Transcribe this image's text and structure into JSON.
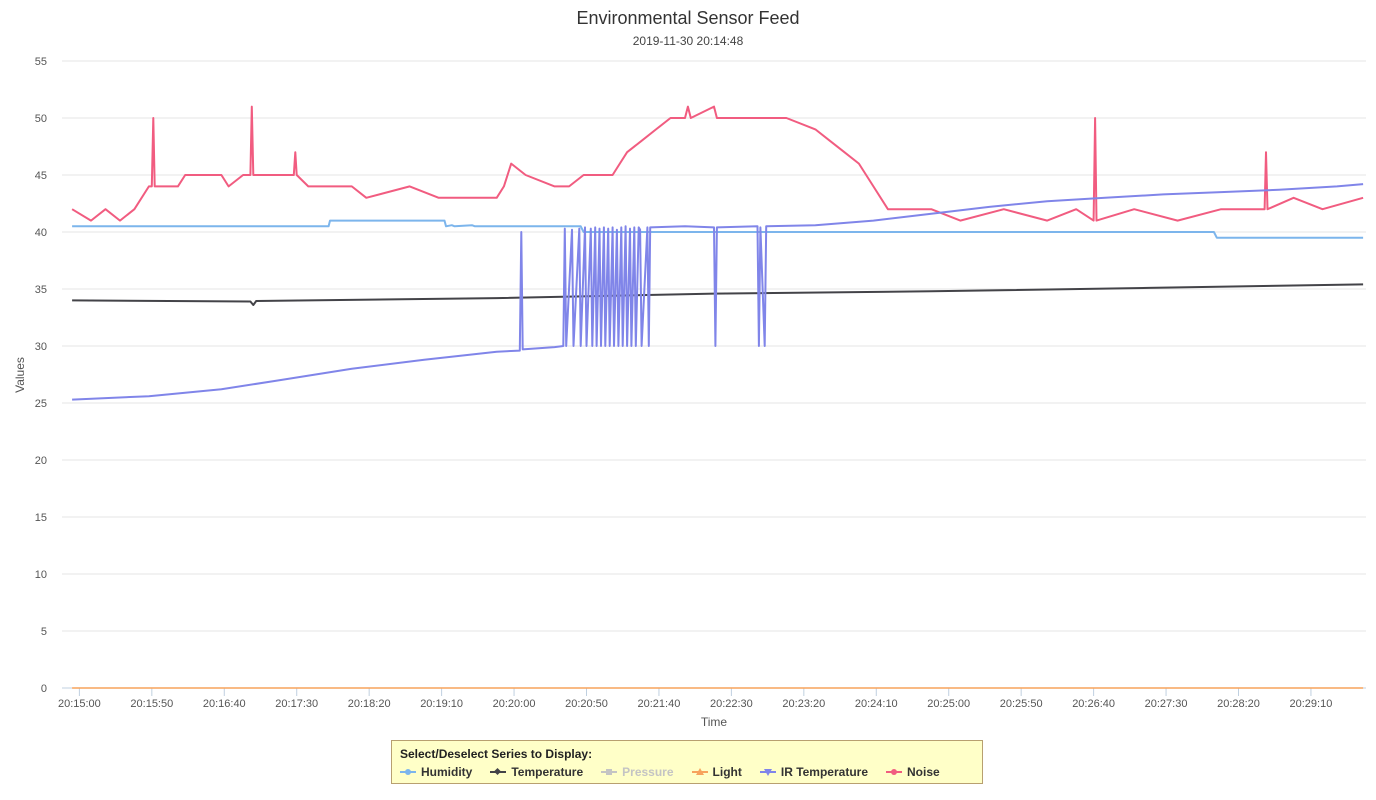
{
  "chart_data": {
    "type": "line",
    "title": "Environmental Sensor Feed",
    "subtitle": "2019-11-30 20:14:48",
    "xlabel": "Time",
    "ylabel": "Values",
    "ylim": [
      0,
      55
    ],
    "yticks": [
      0,
      5,
      10,
      15,
      20,
      25,
      30,
      35,
      40,
      45,
      50,
      55
    ],
    "xlim_seconds": [
      0,
      900
    ],
    "xticks": [
      {
        "label": "20:15:00",
        "t": 12
      },
      {
        "label": "20:15:50",
        "t": 62
      },
      {
        "label": "20:16:40",
        "t": 112
      },
      {
        "label": "20:17:30",
        "t": 162
      },
      {
        "label": "20:18:20",
        "t": 212
      },
      {
        "label": "20:19:10",
        "t": 262
      },
      {
        "label": "20:20:00",
        "t": 312
      },
      {
        "label": "20:20:50",
        "t": 362
      },
      {
        "label": "20:21:40",
        "t": 412
      },
      {
        "label": "20:22:30",
        "t": 462
      },
      {
        "label": "20:23:20",
        "t": 512
      },
      {
        "label": "20:24:10",
        "t": 562
      },
      {
        "label": "20:25:00",
        "t": 612
      },
      {
        "label": "20:25:50",
        "t": 662
      },
      {
        "label": "20:26:40",
        "t": 712
      },
      {
        "label": "20:27:30",
        "t": 762
      },
      {
        "label": "20:28:20",
        "t": 812
      },
      {
        "label": "20:29:10",
        "t": 862
      }
    ],
    "grid": true,
    "legend_placement": "bottom-center",
    "legend_title": "Select/Deselect Series to Display:",
    "series": [
      {
        "name": "Humidity",
        "color": "#7cb5ec",
        "marker": "circle",
        "visible": true,
        "points": [
          [
            7,
            40.5
          ],
          [
            184,
            40.5
          ],
          [
            185,
            41
          ],
          [
            264,
            41
          ],
          [
            265,
            40.5
          ],
          [
            269,
            40.6
          ],
          [
            271,
            40.5
          ],
          [
            283,
            40.6
          ],
          [
            285,
            40.5
          ],
          [
            358,
            40.5
          ],
          [
            360,
            40
          ],
          [
            795,
            40
          ],
          [
            797,
            39.5
          ],
          [
            898,
            39.5
          ]
        ]
      },
      {
        "name": "Temperature",
        "color": "#434348",
        "marker": "diamond",
        "visible": true,
        "points": [
          [
            7,
            34
          ],
          [
            130,
            33.9
          ],
          [
            132,
            33.6
          ],
          [
            134,
            33.95
          ],
          [
            300,
            34.2
          ],
          [
            450,
            34.6
          ],
          [
            600,
            34.8
          ],
          [
            750,
            35.1
          ],
          [
            898,
            35.4
          ]
        ]
      },
      {
        "name": "Pressure",
        "color": "#c4c4c4",
        "marker": "square",
        "visible": false,
        "points": []
      },
      {
        "name": "Light",
        "color": "#f7a35c",
        "marker": "triangle",
        "visible": true,
        "points": [
          [
            7,
            0
          ],
          [
            898,
            0
          ]
        ]
      },
      {
        "name": "IR Temperature",
        "color": "#8085e9",
        "marker": "triangle-down",
        "visible": true,
        "points": [
          [
            7,
            25.3
          ],
          [
            60,
            25.6
          ],
          [
            110,
            26.2
          ],
          [
            150,
            27
          ],
          [
            200,
            28
          ],
          [
            250,
            28.8
          ],
          [
            300,
            29.5
          ],
          [
            316,
            29.6
          ],
          [
            317,
            40
          ],
          [
            318,
            29.7
          ],
          [
            340,
            29.9
          ],
          [
            346,
            30
          ],
          [
            347,
            40.3
          ],
          [
            348,
            30
          ],
          [
            352,
            40.2
          ],
          [
            353,
            30
          ],
          [
            357,
            40.3
          ],
          [
            358,
            30
          ],
          [
            361,
            40.4
          ],
          [
            362,
            30
          ],
          [
            365,
            40.3
          ],
          [
            366,
            30
          ],
          [
            368,
            40.4
          ],
          [
            369,
            30
          ],
          [
            371,
            40.3
          ],
          [
            372,
            30
          ],
          [
            374,
            40.4
          ],
          [
            375,
            30
          ],
          [
            377,
            40.3
          ],
          [
            378,
            30
          ],
          [
            380,
            40.4
          ],
          [
            381,
            30
          ],
          [
            383,
            40.2
          ],
          [
            384,
            30
          ],
          [
            386,
            40.4
          ],
          [
            387,
            30
          ],
          [
            389,
            40.5
          ],
          [
            390,
            30
          ],
          [
            392,
            40.3
          ],
          [
            393,
            30
          ],
          [
            395,
            40.4
          ],
          [
            396,
            30
          ],
          [
            398,
            40.4
          ],
          [
            399,
            40.2
          ],
          [
            400,
            30
          ],
          [
            404,
            40.4
          ],
          [
            405,
            30
          ],
          [
            406,
            40.4
          ],
          [
            430,
            40.5
          ],
          [
            450,
            40.4
          ],
          [
            451,
            30
          ],
          [
            452,
            40.4
          ],
          [
            480,
            40.5
          ],
          [
            481,
            30
          ],
          [
            482,
            40.4
          ],
          [
            485,
            30
          ],
          [
            486,
            40.5
          ],
          [
            520,
            40.6
          ],
          [
            560,
            41
          ],
          [
            600,
            41.6
          ],
          [
            640,
            42.2
          ],
          [
            680,
            42.7
          ],
          [
            720,
            43
          ],
          [
            760,
            43.3
          ],
          [
            800,
            43.5
          ],
          [
            840,
            43.7
          ],
          [
            880,
            44
          ],
          [
            898,
            44.2
          ]
        ]
      },
      {
        "name": "Noise",
        "color": "#f15c80",
        "marker": "circle",
        "visible": true,
        "points": [
          [
            7,
            42
          ],
          [
            20,
            41
          ],
          [
            30,
            42
          ],
          [
            40,
            41
          ],
          [
            50,
            42
          ],
          [
            60,
            44
          ],
          [
            62,
            44
          ],
          [
            63,
            50
          ],
          [
            64,
            44
          ],
          [
            80,
            44
          ],
          [
            85,
            45
          ],
          [
            110,
            45
          ],
          [
            115,
            44
          ],
          [
            125,
            45
          ],
          [
            130,
            45
          ],
          [
            131,
            51
          ],
          [
            132,
            45
          ],
          [
            155,
            45
          ],
          [
            160,
            45
          ],
          [
            161,
            47
          ],
          [
            162,
            45
          ],
          [
            170,
            44
          ],
          [
            200,
            44
          ],
          [
            210,
            43
          ],
          [
            240,
            44
          ],
          [
            260,
            43
          ],
          [
            300,
            43
          ],
          [
            305,
            44
          ],
          [
            310,
            46
          ],
          [
            320,
            45
          ],
          [
            340,
            44
          ],
          [
            350,
            44
          ],
          [
            360,
            45
          ],
          [
            380,
            45
          ],
          [
            385,
            46
          ],
          [
            390,
            47
          ],
          [
            400,
            48
          ],
          [
            410,
            49
          ],
          [
            420,
            50
          ],
          [
            430,
            50
          ],
          [
            432,
            51
          ],
          [
            434,
            50
          ],
          [
            450,
            51
          ],
          [
            452,
            50
          ],
          [
            500,
            50
          ],
          [
            520,
            49
          ],
          [
            530,
            48
          ],
          [
            540,
            47
          ],
          [
            550,
            46
          ],
          [
            560,
            44
          ],
          [
            570,
            42
          ],
          [
            600,
            42
          ],
          [
            620,
            41
          ],
          [
            650,
            42
          ],
          [
            680,
            41
          ],
          [
            700,
            42
          ],
          [
            712,
            41
          ],
          [
            713,
            50
          ],
          [
            714,
            41
          ],
          [
            740,
            42
          ],
          [
            770,
            41
          ],
          [
            800,
            42
          ],
          [
            830,
            42
          ],
          [
            831,
            47
          ],
          [
            832,
            42
          ],
          [
            850,
            43
          ],
          [
            870,
            42
          ],
          [
            898,
            43
          ]
        ]
      }
    ]
  }
}
